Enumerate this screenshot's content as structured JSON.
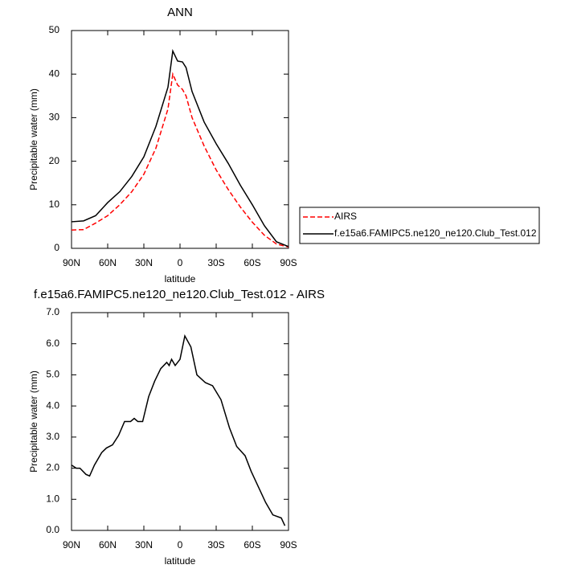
{
  "chart_data": [
    {
      "type": "line",
      "title": "ANN",
      "x_label": "latitude",
      "y_label": "Precipitable water (mm)",
      "x": [
        90,
        80,
        70,
        60,
        50,
        40,
        30,
        20,
        10,
        6,
        2,
        -2,
        -5,
        -10,
        -20,
        -30,
        -40,
        -50,
        -60,
        -70,
        -80,
        -90
      ],
      "series": [
        {
          "name": "AIRS",
          "color": "#ff0000",
          "dashed": true,
          "values": [
            4.2,
            4.3,
            5.8,
            7.5,
            10,
            13,
            17,
            23,
            32,
            40,
            37.5,
            36.5,
            35,
            30,
            23.5,
            18,
            13.5,
            9.5,
            6,
            3,
            1.0,
            0.3
          ]
        },
        {
          "name": "f.e15a6.FAMIPC5.ne120_ne120.Club_Test.012",
          "color": "#000000",
          "dashed": false,
          "values": [
            6.1,
            6.3,
            7.5,
            10.5,
            13,
            16.5,
            21,
            28,
            37,
            45.3,
            43,
            42.8,
            41.5,
            36,
            29,
            24,
            19.5,
            14.5,
            10,
            5.2,
            1.5,
            0.4
          ]
        }
      ],
      "xlim": [
        90,
        -90
      ],
      "xticks": [
        {
          "value": 90,
          "label": "90N"
        },
        {
          "value": 60,
          "label": "60N"
        },
        {
          "value": 30,
          "label": "30N"
        },
        0,
        {
          "value": -30,
          "label": "30S"
        },
        {
          "value": -60,
          "label": "60S"
        },
        {
          "value": -90,
          "label": "90S"
        }
      ],
      "ylim": [
        0,
        50
      ],
      "yticks": [
        0,
        10,
        20,
        30,
        40,
        50
      ],
      "legend": "right"
    },
    {
      "type": "line",
      "title": "f.e15a6.FAMIPC5.ne120_ne120.Club_Test.012 - AIRS",
      "x_label": "latitude",
      "y_label": "Precipitable water (mm)",
      "x": [
        90,
        86,
        83,
        78,
        75,
        71,
        65,
        61,
        56,
        51,
        46,
        41,
        38,
        35,
        31,
        26,
        21,
        16,
        11,
        9,
        7,
        4,
        0,
        -4,
        -9,
        -14,
        -21,
        -27,
        -34,
        -41,
        -47,
        -54,
        -59,
        -65,
        -71,
        -77,
        -84,
        -87
      ],
      "series": [
        {
          "color": "#000000",
          "dashed": false,
          "values": [
            2.1,
            2.0,
            2.0,
            1.8,
            1.75,
            2.1,
            2.5,
            2.65,
            2.75,
            3.05,
            3.5,
            3.5,
            3.6,
            3.5,
            3.5,
            4.3,
            4.8,
            5.2,
            5.4,
            5.3,
            5.5,
            5.3,
            5.5,
            6.25,
            5.9,
            5.0,
            4.75,
            4.65,
            4.2,
            3.3,
            2.7,
            2.4,
            1.9,
            1.4,
            0.9,
            0.5,
            0.4,
            0.15
          ]
        }
      ],
      "xlim": [
        90,
        -90
      ],
      "xticks": [
        {
          "value": 90,
          "label": "90N"
        },
        {
          "value": 60,
          "label": "60N"
        },
        {
          "value": 30,
          "label": "30N"
        },
        0,
        {
          "value": -30,
          "label": "30S"
        },
        {
          "value": -60,
          "label": "60S"
        },
        {
          "value": -90,
          "label": "90S"
        }
      ],
      "ylim": [
        0,
        7
      ],
      "yticks": [
        {
          "value": 0,
          "label": "0.0"
        },
        {
          "value": 1,
          "label": "1.0"
        },
        {
          "value": 2,
          "label": "2.0"
        },
        {
          "value": 3,
          "label": "3.0"
        },
        {
          "value": 4,
          "label": "4.0"
        },
        {
          "value": 5,
          "label": "5.0"
        },
        {
          "value": 6,
          "label": "6.0"
        },
        {
          "value": 7,
          "label": "7.0"
        }
      ]
    }
  ]
}
